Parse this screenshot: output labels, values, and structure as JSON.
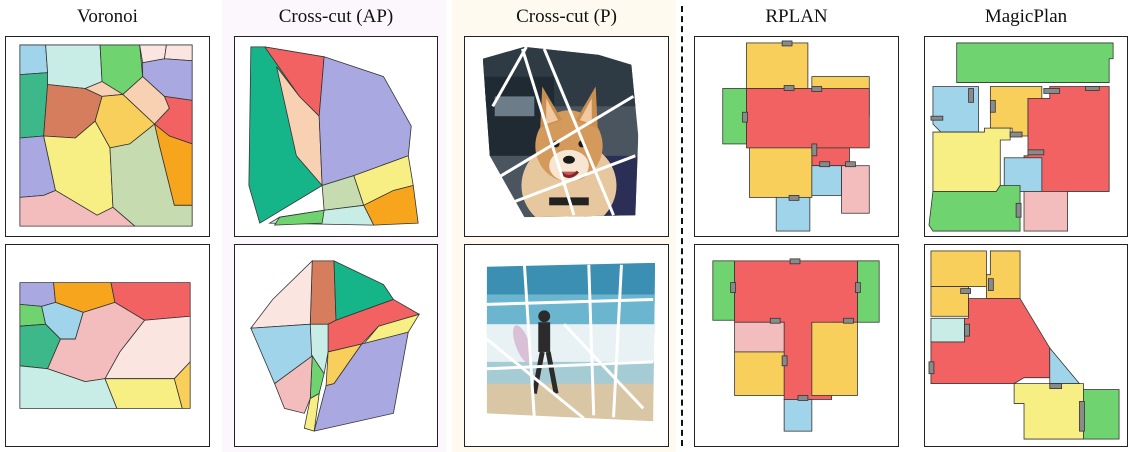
{
  "columns": {
    "voronoi": "Voronoi",
    "crosscut_ap": "Cross-cut (AP)",
    "crosscut_p": "Cross-cut (P)",
    "rplan": "RPLAN",
    "magicplan": "MagicPlan"
  },
  "colors": {
    "green": "#3cb88a",
    "teal_green": "#16b589",
    "red": "#f26262",
    "yellow": "#f7ef84",
    "orange": "#f7a51c",
    "gold": "#f9cf5b",
    "lavender": "#a9a8e0",
    "sky": "#9fd4ea",
    "pink": "#f4bdbd",
    "mint": "#c8ece6",
    "sage": "#c6dcb0",
    "peach": "#f8d0b2",
    "brown": "#d67d5d",
    "bright_green": "#6fd46f",
    "blush": "#fbe5e1",
    "door": "#8a8a8a"
  }
}
